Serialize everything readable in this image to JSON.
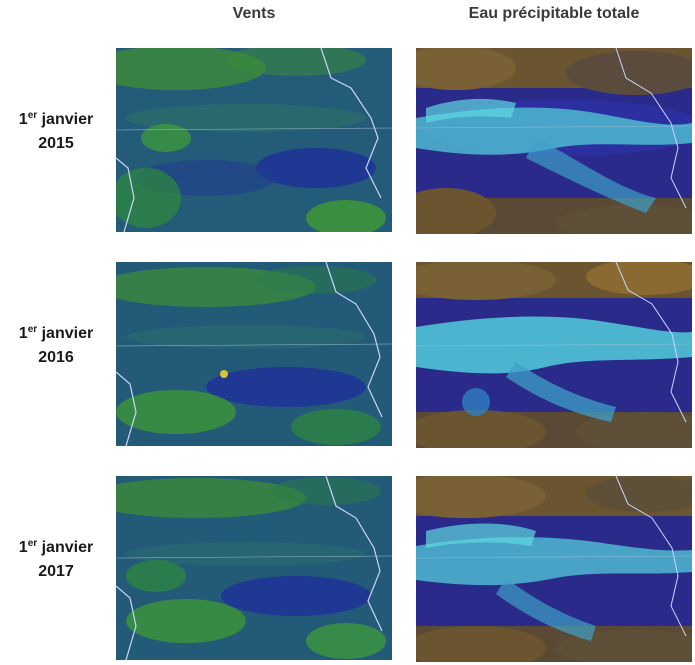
{
  "columns": {
    "winds": "Vents",
    "water": "Eau précipitable totale"
  },
  "rows": [
    {
      "day": "1",
      "sup": "er",
      "month": "janvier",
      "year": "2015"
    },
    {
      "day": "1",
      "sup": "er",
      "month": "janvier",
      "year": "2016"
    },
    {
      "day": "1",
      "sup": "er",
      "month": "janvier",
      "year": "2017"
    }
  ],
  "colors": {
    "winds_base": "#1f5a7a",
    "winds_green": "#3f9a2e",
    "winds_blue": "#1e2a9a",
    "water_brown": "#6a5530",
    "water_navy": "#1c1f7a",
    "water_cyan": "#4fd1d9",
    "coastline": "#c9d4ff"
  }
}
